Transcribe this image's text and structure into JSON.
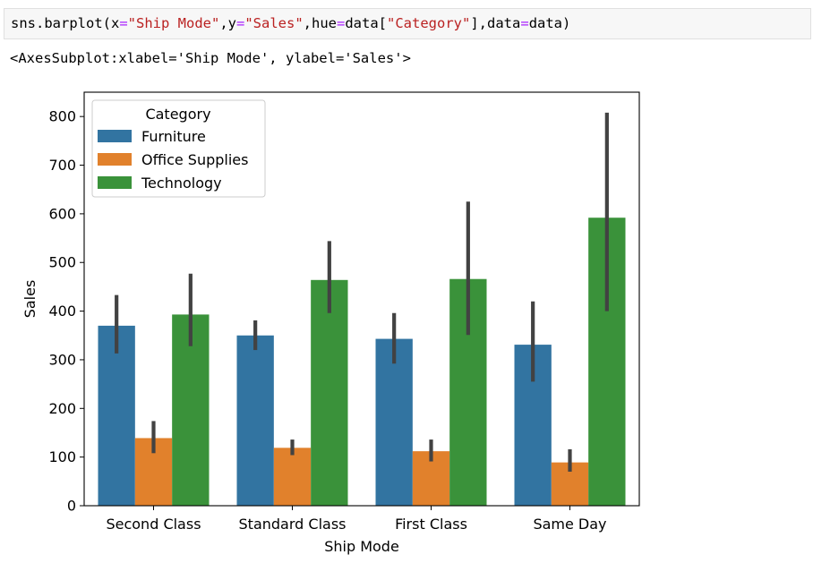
{
  "cell": {
    "code": [
      {
        "t": "sns.barplot(x",
        "c": "plain"
      },
      {
        "t": "=",
        "c": "op"
      },
      {
        "t": "\"Ship Mode\"",
        "c": "str"
      },
      {
        "t": ",y",
        "c": "plain"
      },
      {
        "t": "=",
        "c": "op"
      },
      {
        "t": "\"Sales\"",
        "c": "str"
      },
      {
        "t": ",hue",
        "c": "plain"
      },
      {
        "t": "=",
        "c": "op"
      },
      {
        "t": "data[",
        "c": "plain"
      },
      {
        "t": "\"Category\"",
        "c": "str"
      },
      {
        "t": "],data",
        "c": "plain"
      },
      {
        "t": "=",
        "c": "op"
      },
      {
        "t": "data)",
        "c": "plain"
      }
    ],
    "output": "<AxesSubplot:xlabel='Ship Mode', ylabel='Sales'>"
  },
  "colors": {
    "Furniture": "#3274a1",
    "Office Supplies": "#e1812c",
    "Technology": "#3a923a",
    "errorbar": "#424242"
  },
  "chart_data": {
    "type": "bar",
    "title": "",
    "xlabel": "Ship Mode",
    "ylabel": "Sales",
    "ylim": [
      0,
      850
    ],
    "yticks": [
      0,
      100,
      200,
      300,
      400,
      500,
      600,
      700,
      800
    ],
    "categories": [
      "Second Class",
      "Standard Class",
      "First Class",
      "Same Day"
    ],
    "legend": {
      "title": "Category",
      "position": "upper-left"
    },
    "series": [
      {
        "name": "Furniture",
        "values": [
          370,
          350,
          343,
          331
        ],
        "ci_low": [
          313,
          320,
          292,
          255
        ],
        "ci_high": [
          433,
          381,
          396,
          420
        ]
      },
      {
        "name": "Office Supplies",
        "values": [
          139,
          119,
          112,
          89
        ],
        "ci_low": [
          108,
          104,
          91,
          70
        ],
        "ci_high": [
          174,
          136,
          136,
          116
        ]
      },
      {
        "name": "Technology",
        "values": [
          393,
          464,
          466,
          592
        ],
        "ci_low": [
          328,
          396,
          351,
          400
        ],
        "ci_high": [
          477,
          544,
          625,
          808
        ]
      }
    ]
  }
}
